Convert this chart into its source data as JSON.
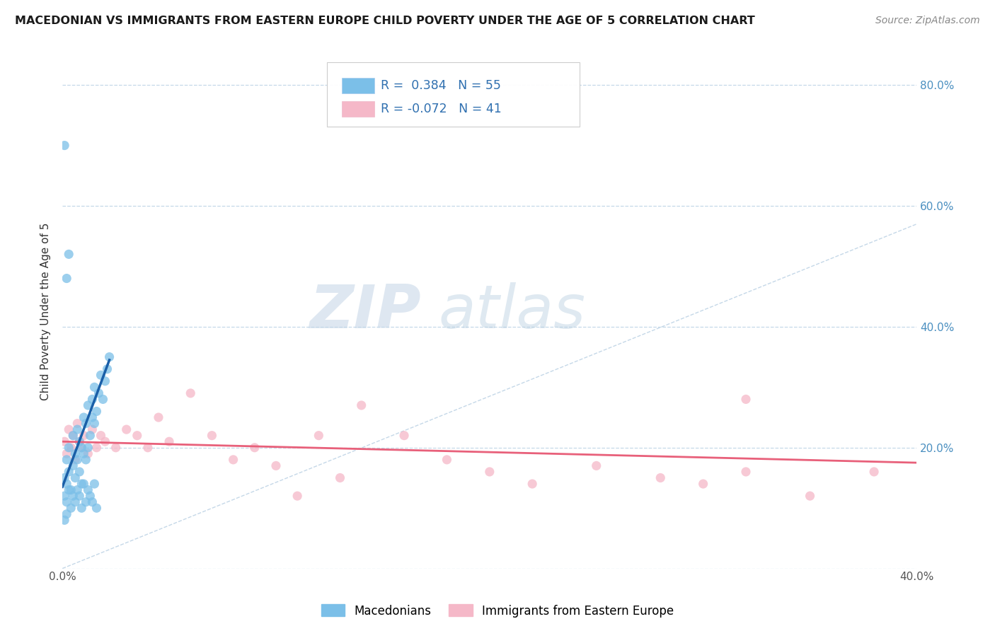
{
  "title": "MACEDONIAN VS IMMIGRANTS FROM EASTERN EUROPE CHILD POVERTY UNDER THE AGE OF 5 CORRELATION CHART",
  "source": "Source: ZipAtlas.com",
  "ylabel": "Child Poverty Under the Age of 5",
  "xlim": [
    0.0,
    0.4
  ],
  "ylim": [
    0.0,
    0.85
  ],
  "x_ticks": [
    0.0,
    0.05,
    0.1,
    0.15,
    0.2,
    0.25,
    0.3,
    0.35,
    0.4
  ],
  "y_ticks": [
    0.0,
    0.2,
    0.4,
    0.6,
    0.8
  ],
  "macedonian_R": 0.384,
  "macedonian_N": 55,
  "eastern_europe_R": -0.072,
  "eastern_europe_N": 41,
  "blue_color": "#7bbfe8",
  "blue_line_color": "#1a5fa8",
  "pink_color": "#f5b8c8",
  "pink_line_color": "#e8607a",
  "grid_color": "#c5d8e8",
  "background_color": "#ffffff",
  "watermark_zip": "ZIP",
  "watermark_atlas": "atlas",
  "macedonian_x": [
    0.001,
    0.002,
    0.002,
    0.003,
    0.003,
    0.004,
    0.005,
    0.005,
    0.006,
    0.006,
    0.007,
    0.007,
    0.008,
    0.008,
    0.009,
    0.009,
    0.01,
    0.01,
    0.011,
    0.011,
    0.012,
    0.012,
    0.013,
    0.014,
    0.014,
    0.015,
    0.015,
    0.016,
    0.017,
    0.018,
    0.019,
    0.02,
    0.021,
    0.022,
    0.001,
    0.002,
    0.003,
    0.004,
    0.005,
    0.006,
    0.007,
    0.008,
    0.009,
    0.01,
    0.011,
    0.012,
    0.013,
    0.014,
    0.015,
    0.016,
    0.001,
    0.002,
    0.003,
    0.001,
    0.002
  ],
  "macedonian_y": [
    0.15,
    0.14,
    0.18,
    0.16,
    0.2,
    0.13,
    0.17,
    0.22,
    0.15,
    0.19,
    0.18,
    0.23,
    0.16,
    0.21,
    0.14,
    0.2,
    0.19,
    0.25,
    0.18,
    0.24,
    0.2,
    0.27,
    0.22,
    0.25,
    0.28,
    0.24,
    0.3,
    0.26,
    0.29,
    0.32,
    0.28,
    0.31,
    0.33,
    0.35,
    0.12,
    0.11,
    0.13,
    0.1,
    0.12,
    0.11,
    0.13,
    0.12,
    0.1,
    0.14,
    0.11,
    0.13,
    0.12,
    0.11,
    0.14,
    0.1,
    0.7,
    0.48,
    0.52,
    0.08,
    0.09
  ],
  "eastern_europe_x": [
    0.001,
    0.002,
    0.003,
    0.004,
    0.005,
    0.006,
    0.007,
    0.008,
    0.009,
    0.01,
    0.012,
    0.014,
    0.016,
    0.018,
    0.02,
    0.025,
    0.03,
    0.035,
    0.04,
    0.045,
    0.05,
    0.06,
    0.07,
    0.08,
    0.09,
    0.1,
    0.11,
    0.12,
    0.13,
    0.14,
    0.16,
    0.18,
    0.2,
    0.22,
    0.25,
    0.28,
    0.3,
    0.32,
    0.35,
    0.38,
    0.32
  ],
  "eastern_europe_y": [
    0.21,
    0.19,
    0.23,
    0.2,
    0.22,
    0.18,
    0.24,
    0.21,
    0.2,
    0.22,
    0.19,
    0.23,
    0.2,
    0.22,
    0.21,
    0.2,
    0.23,
    0.22,
    0.2,
    0.25,
    0.21,
    0.29,
    0.22,
    0.18,
    0.2,
    0.17,
    0.12,
    0.22,
    0.15,
    0.27,
    0.22,
    0.18,
    0.16,
    0.14,
    0.17,
    0.15,
    0.14,
    0.16,
    0.12,
    0.16,
    0.28
  ],
  "diag_line_x": [
    0.0,
    0.4
  ],
  "diag_line_y": [
    0.0,
    0.57
  ],
  "blue_line_x": [
    0.0,
    0.022
  ],
  "blue_line_y": [
    0.135,
    0.345
  ],
  "pink_line_x": [
    0.0,
    0.4
  ],
  "pink_line_y": [
    0.21,
    0.175
  ]
}
